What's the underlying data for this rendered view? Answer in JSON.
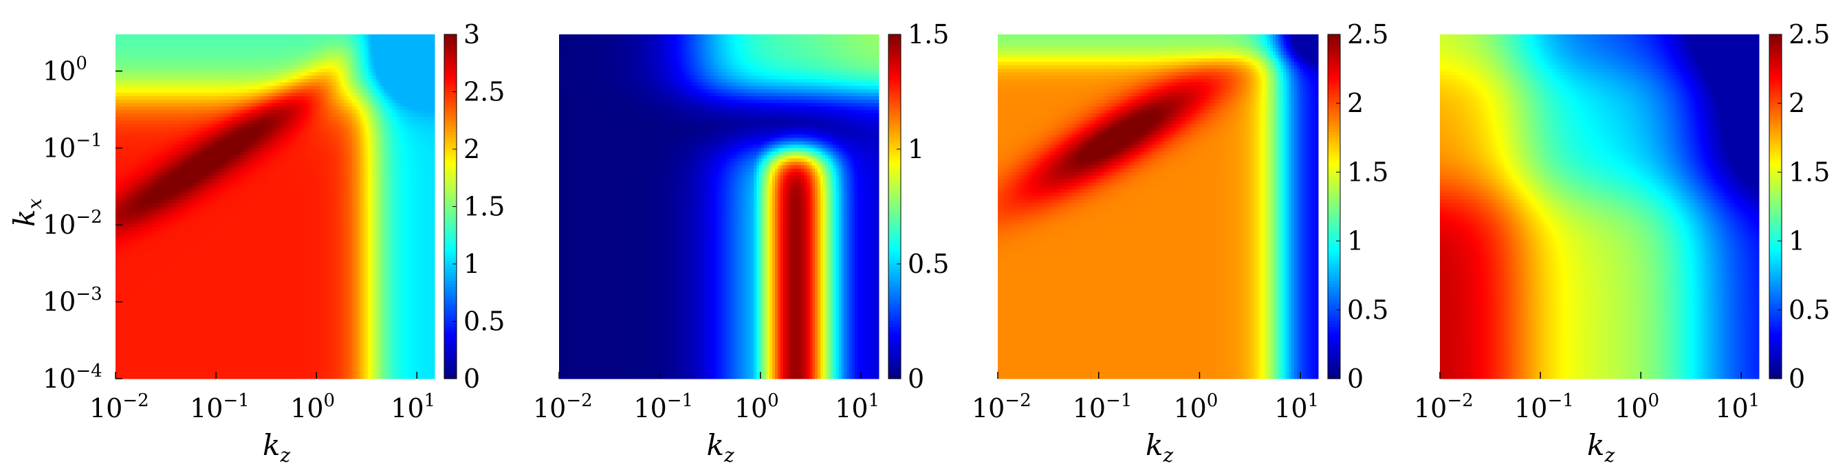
{
  "chart_data": [
    {
      "type": "heatmap",
      "panel": 1,
      "xlabel": "kz",
      "ylabel": "kx",
      "x_scale": "log",
      "y_scale": "log",
      "xlim": [
        0.01,
        15
      ],
      "ylim": [
        0.0001,
        3
      ],
      "x_ticks": [
        {
          "base": "10",
          "exp": "−2"
        },
        {
          "base": "10",
          "exp": "−1"
        },
        {
          "base": "10",
          "exp": "0"
        },
        {
          "base": "10",
          "exp": "1"
        }
      ],
      "y_ticks": [
        {
          "base": "10",
          "exp": "−4"
        },
        {
          "base": "10",
          "exp": "−3"
        },
        {
          "base": "10",
          "exp": "−2"
        },
        {
          "base": "10",
          "exp": "−1"
        },
        {
          "base": "10",
          "exp": "0"
        }
      ],
      "colorbar": {
        "min": 0,
        "max": 3,
        "ticks": [
          "0",
          "0.5",
          "1",
          "1.5",
          "2",
          "2.5",
          "3"
        ]
      },
      "colormap": "jet",
      "description_of_field": "high plateau (~2.6) for kz < 1 and kx < 0.03, ridge rising diagonally to kx ~ 0.5 near kz ~ 0.4, falls to ~1 for kz > 5 and ~1.2 for kx > 1"
    },
    {
      "type": "heatmap",
      "panel": 2,
      "xlabel": "kz",
      "ylabel": "",
      "x_scale": "log",
      "y_scale": "log",
      "xlim": [
        0.01,
        15
      ],
      "ylim": [
        0.0001,
        3
      ],
      "x_ticks": [
        {
          "base": "10",
          "exp": "−2"
        },
        {
          "base": "10",
          "exp": "−1"
        },
        {
          "base": "10",
          "exp": "0"
        },
        {
          "base": "10",
          "exp": "1"
        }
      ],
      "colorbar": {
        "min": 0,
        "max": 1.5,
        "ticks": [
          "0",
          "0.5",
          "1",
          "1.5"
        ]
      },
      "colormap": "jet",
      "description_of_field": "near zero for kz < 0.3 and kx < 1, strong peak (~1.4) for kz in 1–5 and kx < 0.1, moderate (~0.6) band at top"
    },
    {
      "type": "heatmap",
      "panel": 3,
      "xlabel": "kz",
      "ylabel": "",
      "x_scale": "log",
      "y_scale": "log",
      "xlim": [
        0.01,
        15
      ],
      "ylim": [
        0.0001,
        3
      ],
      "x_ticks": [
        {
          "base": "10",
          "exp": "−2"
        },
        {
          "base": "10",
          "exp": "−1"
        },
        {
          "base": "10",
          "exp": "0"
        },
        {
          "base": "10",
          "exp": "1"
        }
      ],
      "colorbar": {
        "min": 0,
        "max": 2.5,
        "ticks": [
          "0",
          "0.5",
          "1",
          "1.5",
          "2",
          "2.5"
        ]
      },
      "colormap": "jet",
      "description_of_field": "diagonal ridge peaking (~2.5) near kz ~ 0.1, kx ~ 0.1, extending to kz ~ 2, kx ~ 1; plateau ~1.8 at bottom; falls to ~0.2 for kz > 10"
    },
    {
      "type": "heatmap",
      "panel": 4,
      "xlabel": "kz",
      "ylabel": "",
      "x_scale": "log",
      "y_scale": "log",
      "xlim": [
        0.01,
        15
      ],
      "ylim": [
        0.0001,
        3
      ],
      "x_ticks": [
        {
          "base": "10",
          "exp": "−2"
        },
        {
          "base": "10",
          "exp": "−1"
        },
        {
          "base": "10",
          "exp": "0"
        },
        {
          "base": "10",
          "exp": "1"
        }
      ],
      "colorbar": {
        "min": 0,
        "max": 2.5,
        "ticks": [
          "0",
          "0.5",
          "1",
          "1.5",
          "2",
          "2.5"
        ]
      },
      "colormap": "jet",
      "description_of_field": "maximum (~2.4) at smallest kz and kx < 0.01, decreasing smoothly toward large kz and large kx (~0.8 at top-right)"
    }
  ]
}
